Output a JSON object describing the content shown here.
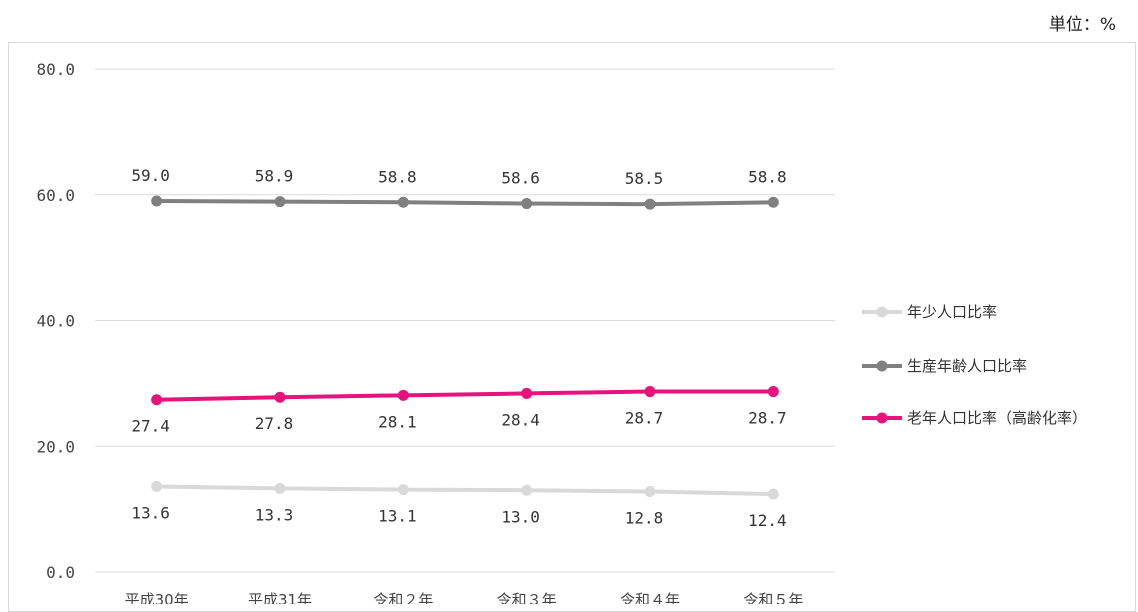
{
  "unit_label": "単位：%",
  "chart_data": {
    "type": "line",
    "categories": [
      "平成30年",
      "平成31年",
      "令和２年",
      "令和３年",
      "令和４年",
      "令和５年"
    ],
    "ylim": [
      0,
      80
    ],
    "yticks": [
      "0.0",
      "20.0",
      "40.0",
      "60.0",
      "80.0"
    ],
    "grid": true,
    "legend_position": "right",
    "series": [
      {
        "name": "年少人口比率",
        "color": "#d9d9d9",
        "values": [
          13.6,
          13.3,
          13.1,
          13.0,
          12.8,
          12.4
        ],
        "labels": [
          "13.6",
          "13.3",
          "13.1",
          "13.0",
          "12.8",
          "12.4"
        ],
        "label_position": "below"
      },
      {
        "name": "生産年齢人口比率",
        "color": "#808080",
        "values": [
          59.0,
          58.9,
          58.8,
          58.6,
          58.5,
          58.8
        ],
        "labels": [
          "59.0",
          "58.9",
          "58.8",
          "58.6",
          "58.5",
          "58.8"
        ],
        "label_position": "above"
      },
      {
        "name": "老年人口比率（高齢化率）",
        "color": "#e5137b",
        "values": [
          27.4,
          27.8,
          28.1,
          28.4,
          28.7,
          28.7
        ],
        "labels": [
          "27.4",
          "27.8",
          "28.1",
          "28.4",
          "28.7",
          "28.7"
        ],
        "label_position": "below"
      }
    ]
  }
}
